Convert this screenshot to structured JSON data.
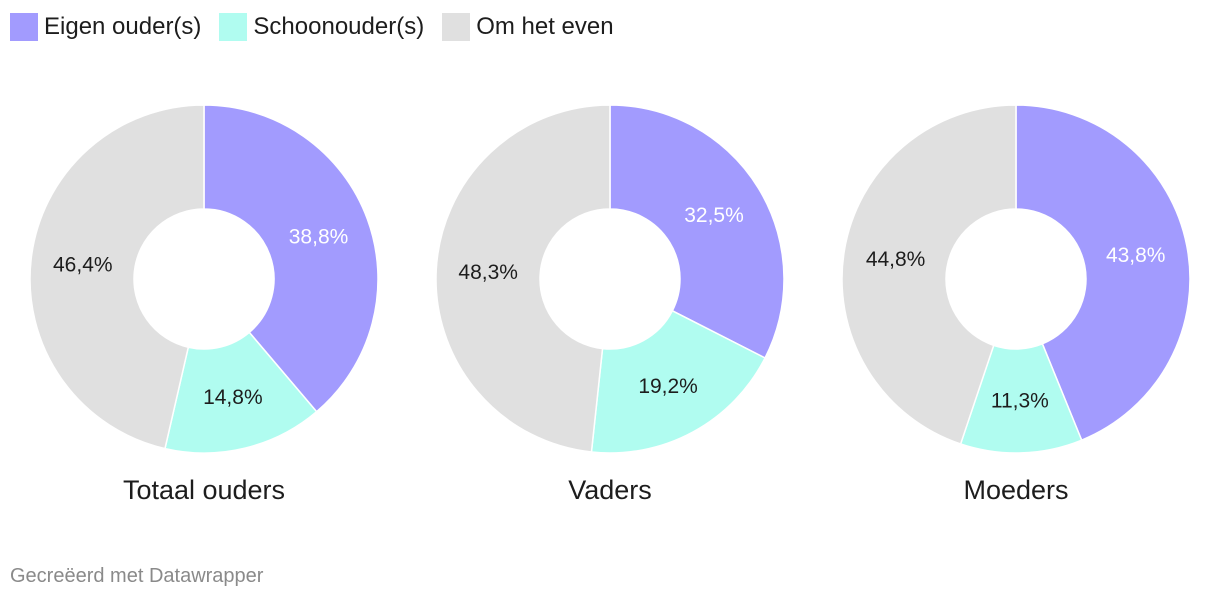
{
  "legend": [
    {
      "label": "Eigen ouder(s)",
      "color": "#a29bfe"
    },
    {
      "label": "Schoonouder(s)",
      "color": "#b0fcf0"
    },
    {
      "label": "Om het even",
      "color": "#e0e0e0"
    }
  ],
  "chart_data": [
    {
      "type": "pie",
      "title": "Totaal ouders",
      "labels": [
        "Eigen ouder(s)",
        "Schoonouder(s)",
        "Om het even"
      ],
      "values": [
        38.8,
        14.8,
        46.4
      ],
      "value_labels": [
        "38,8%",
        "14,8%",
        "46,4%"
      ],
      "colors": [
        "#a29bfe",
        "#b0fcf0",
        "#e0e0e0"
      ],
      "label_colors": [
        "#ffffff",
        "#1d1d1d",
        "#1d1d1d"
      ]
    },
    {
      "type": "pie",
      "title": "Vaders",
      "labels": [
        "Eigen ouder(s)",
        "Schoonouder(s)",
        "Om het even"
      ],
      "values": [
        32.5,
        19.2,
        48.3
      ],
      "value_labels": [
        "32,5%",
        "19,2%",
        "48,3%"
      ],
      "colors": [
        "#a29bfe",
        "#b0fcf0",
        "#e0e0e0"
      ],
      "label_colors": [
        "#ffffff",
        "#1d1d1d",
        "#1d1d1d"
      ]
    },
    {
      "type": "pie",
      "title": "Moeders",
      "labels": [
        "Eigen ouder(s)",
        "Schoonouder(s)",
        "Om het even"
      ],
      "values": [
        43.8,
        11.3,
        44.8
      ],
      "value_labels": [
        "43,8%",
        "11,3%",
        "44,8%"
      ],
      "colors": [
        "#a29bfe",
        "#b0fcf0",
        "#e0e0e0"
      ],
      "label_colors": [
        "#ffffff",
        "#1d1d1d",
        "#1d1d1d"
      ]
    }
  ],
  "footer": {
    "credit": "Gecreëerd met Datawrapper"
  }
}
